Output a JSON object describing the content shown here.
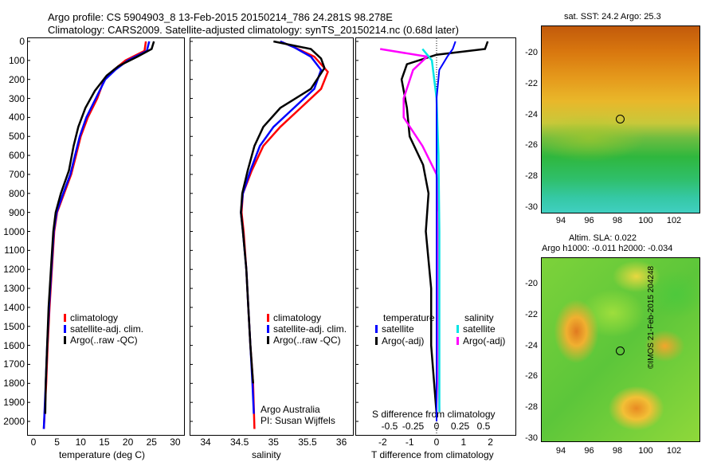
{
  "header": {
    "line1": "Argo profile: CS 5904903_8 13-Feb-2015 20150214_786 24.281S 98.278E",
    "line2": "Climatology: CARS2009. Satellite-adjusted climatology: synTS_20150214.nc (0.68d later)"
  },
  "depth_ticks": [
    "0",
    "100",
    "200",
    "300",
    "400",
    "500",
    "600",
    "700",
    "800",
    "900",
    "1000",
    "1100",
    "1200",
    "1300",
    "1400",
    "1500",
    "1600",
    "1700",
    "1800",
    "1900",
    "2000"
  ],
  "colors": {
    "climatology": "#ff0000",
    "satellite": "#0000ff",
    "argo": "#000000",
    "cyan": "#00e5e5",
    "magenta": "#ff00ff"
  },
  "panel_temp": {
    "xlabel": "temperature (deg C)",
    "xticks": [
      "0",
      "5",
      "10",
      "15",
      "20",
      "25",
      "30"
    ],
    "legend": [
      "climatology",
      "satellite-adj. clim.",
      "Argo(..raw -QC)"
    ]
  },
  "panel_sal": {
    "xlabel": "salinity",
    "xticks": [
      "34",
      "34.5",
      "35",
      "35.5",
      "36"
    ],
    "legend": [
      "climatology",
      "satellite-adj. clim.",
      "Argo(..raw -QC)"
    ],
    "credit1": "Argo Australia",
    "credit2": "PI: Susan Wijffels"
  },
  "panel_diff": {
    "xlabel": "T difference from climatology",
    "s_label": "S difference from climatology",
    "s_ticks": [
      "-0.5",
      "-0.25",
      "0",
      "0.25",
      "0.5"
    ],
    "t_ticks": [
      "-2",
      "-1",
      "0",
      "1",
      "2"
    ],
    "legend_t_title": "temperature",
    "legend_s_title": "salinity",
    "legend_t": [
      "satellite",
      "Argo(-adj)"
    ],
    "legend_s": [
      "satellite",
      "Argo(-adj)"
    ]
  },
  "map_sst": {
    "title": "sat. SST: 24.2  Argo: 25.3",
    "yticks": [
      "-20",
      "-22",
      "-24",
      "-26",
      "-28",
      "-30"
    ],
    "xticks": [
      "94",
      "96",
      "98",
      "100",
      "102"
    ]
  },
  "map_sla": {
    "title1": "Altim. SLA: 0.022",
    "title2": "Argo h1000: -0.011 h2000: -0.034",
    "yticks": [
      "-20",
      "-22",
      "-24",
      "-26",
      "-28",
      "-30"
    ],
    "xticks": [
      "94",
      "96",
      "98",
      "100",
      "102"
    ]
  },
  "footer": {
    "stamp": "©IMOS 21-Feb-2015 204248"
  },
  "chart_data": [
    {
      "type": "line",
      "title": "",
      "xlabel": "temperature (deg C)",
      "ylabel": "",
      "xlim": [
        -3,
        32
      ],
      "ylim": [
        2050,
        0
      ],
      "series": [
        {
          "name": "climatology",
          "points": [
            [
              23.8,
              0
            ],
            [
              23.5,
              50
            ],
            [
              19.5,
              100
            ],
            [
              17,
              150
            ],
            [
              15,
              200
            ],
            [
              13.5,
              300
            ],
            [
              11.5,
              400
            ],
            [
              10,
              500
            ],
            [
              9,
              600
            ],
            [
              8,
              700
            ],
            [
              6.5,
              800
            ],
            [
              5,
              900
            ],
            [
              4.4,
              1000
            ],
            [
              3.9,
              1200
            ],
            [
              3.4,
              1400
            ],
            [
              3,
              1600
            ],
            [
              2.7,
              1800
            ],
            [
              2.2,
              2040
            ]
          ]
        },
        {
          "name": "satellite-adj. clim.",
          "points": [
            [
              24.5,
              0
            ],
            [
              24,
              50
            ],
            [
              20,
              100
            ],
            [
              17.3,
              150
            ],
            [
              15.2,
              200
            ],
            [
              13.2,
              300
            ],
            [
              11.2,
              400
            ],
            [
              9.8,
              500
            ],
            [
              8.8,
              600
            ],
            [
              7.8,
              700
            ],
            [
              6.3,
              800
            ],
            [
              4.9,
              900
            ],
            [
              4.3,
              1000
            ],
            [
              3.8,
              1200
            ],
            [
              3.3,
              1400
            ],
            [
              2.9,
              1600
            ],
            [
              2.6,
              1800
            ],
            [
              2.2,
              2040
            ]
          ]
        },
        {
          "name": "Argo(..raw -QC)",
          "points": [
            [
              25.5,
              0
            ],
            [
              25,
              40
            ],
            [
              22,
              80
            ],
            [
              18,
              130
            ],
            [
              15.5,
              180
            ],
            [
              13,
              260
            ],
            [
              11,
              350
            ],
            [
              9.5,
              450
            ],
            [
              8.5,
              550
            ],
            [
              7.5,
              680
            ],
            [
              5.8,
              800
            ],
            [
              4.7,
              900
            ],
            [
              4.2,
              1000
            ],
            [
              3.7,
              1200
            ],
            [
              3.2,
              1400
            ],
            [
              2.9,
              1600
            ],
            [
              2.6,
              1800
            ],
            [
              2.5,
              1960
            ]
          ]
        }
      ]
    },
    {
      "type": "line",
      "title": "",
      "xlabel": "salinity",
      "ylabel": "",
      "xlim": [
        33.75,
        36.2
      ],
      "ylim": [
        2050,
        0
      ],
      "series": [
        {
          "name": "climatology",
          "points": [
            [
              35.1,
              0
            ],
            [
              35.3,
              30
            ],
            [
              35.6,
              80
            ],
            [
              35.8,
              160
            ],
            [
              35.7,
              250
            ],
            [
              35.4,
              350
            ],
            [
              35.1,
              450
            ],
            [
              34.85,
              550
            ],
            [
              34.68,
              680
            ],
            [
              34.55,
              800
            ],
            [
              34.53,
              900
            ],
            [
              34.56,
              1000
            ],
            [
              34.6,
              1200
            ],
            [
              34.63,
              1400
            ],
            [
              34.66,
              1600
            ],
            [
              34.7,
              1800
            ],
            [
              34.72,
              2040
            ]
          ]
        },
        {
          "name": "satellite-adj. clim.",
          "points": [
            [
              35.1,
              0
            ],
            [
              35.3,
              30
            ],
            [
              35.55,
              80
            ],
            [
              35.7,
              150
            ],
            [
              35.6,
              250
            ],
            [
              35.3,
              350
            ],
            [
              35,
              450
            ],
            [
              34.8,
              550
            ],
            [
              34.66,
              680
            ],
            [
              34.55,
              800
            ],
            [
              34.52,
              900
            ],
            [
              34.55,
              1000
            ],
            [
              34.6,
              1200
            ],
            [
              34.63,
              1400
            ],
            [
              34.66,
              1600
            ],
            [
              34.69,
              1800
            ],
            [
              34.71,
              1960
            ]
          ]
        },
        {
          "name": "Argo(..raw -QC)",
          "points": [
            [
              35.0,
              0
            ],
            [
              35.55,
              40
            ],
            [
              35.7,
              90
            ],
            [
              35.75,
              140
            ],
            [
              35.55,
              250
            ],
            [
              35.1,
              350
            ],
            [
              34.85,
              450
            ],
            [
              34.72,
              550
            ],
            [
              34.62,
              680
            ],
            [
              34.54,
              800
            ],
            [
              34.52,
              900
            ],
            [
              34.55,
              1000
            ],
            [
              34.6,
              1200
            ],
            [
              34.63,
              1400
            ],
            [
              34.66,
              1600
            ],
            [
              34.7,
              1800
            ]
          ]
        }
      ]
    },
    {
      "type": "line",
      "title": "",
      "xlabel": "T difference from climatology",
      "ylabel": "",
      "xlim": [
        -2.6,
        2.6
      ],
      "ylim": [
        2050,
        0
      ],
      "series": [
        {
          "name": "satellite (temperature)",
          "points": [
            [
              0.7,
              0
            ],
            [
              0.6,
              40
            ],
            [
              0.4,
              80
            ],
            [
              0.1,
              150
            ],
            [
              0,
              300
            ],
            [
              0,
              600
            ],
            [
              0,
              1000
            ],
            [
              0,
              1500
            ],
            [
              0,
              2000
            ]
          ]
        },
        {
          "name": "Argo(-adj) (temperature)",
          "points": [
            [
              1.9,
              0
            ],
            [
              1.8,
              40
            ],
            [
              0,
              70
            ],
            [
              -1.1,
              120
            ],
            [
              -1.3,
              200
            ],
            [
              -1.1,
              350
            ],
            [
              -1.0,
              500
            ],
            [
              -0.5,
              650
            ],
            [
              -0.3,
              800
            ],
            [
              -0.4,
              1000
            ],
            [
              -0.2,
              1300
            ],
            [
              -0.2,
              1600
            ],
            [
              0,
              1960
            ]
          ]
        },
        {
          "name": "satellite (salinity)",
          "points": [
            [
              -0.15,
              40
            ],
            [
              -0.05,
              100
            ],
            [
              0,
              300
            ],
            [
              0.02,
              600
            ],
            [
              0.03,
              1000
            ],
            [
              0.03,
              1500
            ],
            [
              0.03,
              1950
            ]
          ]
        },
        {
          "name": "Argo(-adj) (salinity)",
          "points": [
            [
              -0.6,
              40
            ],
            [
              -0.1,
              80
            ],
            [
              -0.25,
              150
            ],
            [
              -0.35,
              300
            ],
            [
              -0.35,
              400
            ],
            [
              -0.15,
              550
            ],
            [
              0,
              700
            ],
            [
              0.02,
              900
            ],
            [
              0.02,
              1300
            ],
            [
              0.02,
              1800
            ],
            [
              0.03,
              1950
            ]
          ]
        }
      ]
    }
  ]
}
